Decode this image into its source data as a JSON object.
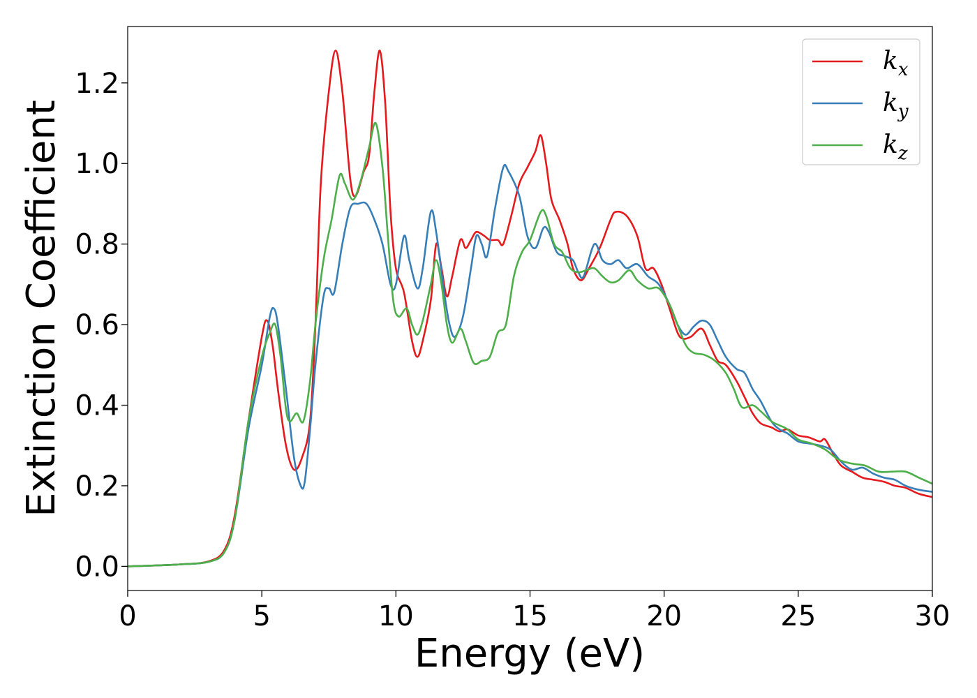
{
  "chart_data": {
    "type": "line",
    "title": "",
    "xlabel": "Energy (eV)",
    "ylabel": "Extinction Coefficient",
    "xlim": [
      0,
      30
    ],
    "ylim": [
      -0.06,
      1.34
    ],
    "xticks": [
      0,
      5,
      10,
      15,
      20,
      25,
      30
    ],
    "yticks": [
      0.0,
      0.2,
      0.4,
      0.6,
      0.8,
      1.0,
      1.2
    ],
    "grid": false,
    "legend_position": "top-right",
    "series": [
      {
        "name": "k",
        "subscript": "x",
        "color": "#e41a1c",
        "points": [
          [
            0,
            0.0
          ],
          [
            1,
            0.002
          ],
          [
            2,
            0.005
          ],
          [
            3,
            0.012
          ],
          [
            3.6,
            0.04
          ],
          [
            4.0,
            0.13
          ],
          [
            4.5,
            0.36
          ],
          [
            5.0,
            0.57
          ],
          [
            5.2,
            0.61
          ],
          [
            5.4,
            0.55
          ],
          [
            5.6,
            0.44
          ],
          [
            5.9,
            0.3
          ],
          [
            6.2,
            0.24
          ],
          [
            6.5,
            0.27
          ],
          [
            6.8,
            0.36
          ],
          [
            7.0,
            0.6
          ],
          [
            7.2,
            0.95
          ],
          [
            7.5,
            1.18
          ],
          [
            7.75,
            1.28
          ],
          [
            8.0,
            1.18
          ],
          [
            8.3,
            0.96
          ],
          [
            8.5,
            0.92
          ],
          [
            8.8,
            0.98
          ],
          [
            9.0,
            1.02
          ],
          [
            9.2,
            1.18
          ],
          [
            9.4,
            1.28
          ],
          [
            9.6,
            1.15
          ],
          [
            9.8,
            0.88
          ],
          [
            10.0,
            0.74
          ],
          [
            10.3,
            0.68
          ],
          [
            10.6,
            0.56
          ],
          [
            10.8,
            0.52
          ],
          [
            11.0,
            0.56
          ],
          [
            11.3,
            0.66
          ],
          [
            11.5,
            0.8
          ],
          [
            11.7,
            0.74
          ],
          [
            11.9,
            0.67
          ],
          [
            12.1,
            0.72
          ],
          [
            12.4,
            0.81
          ],
          [
            12.6,
            0.79
          ],
          [
            12.8,
            0.81
          ],
          [
            13.0,
            0.83
          ],
          [
            13.3,
            0.82
          ],
          [
            13.5,
            0.81
          ],
          [
            13.8,
            0.81
          ],
          [
            14.0,
            0.8
          ],
          [
            14.3,
            0.87
          ],
          [
            14.6,
            0.95
          ],
          [
            14.9,
            0.99
          ],
          [
            15.2,
            1.03
          ],
          [
            15.4,
            1.07
          ],
          [
            15.6,
            1.0
          ],
          [
            15.8,
            0.91
          ],
          [
            16.1,
            0.86
          ],
          [
            16.4,
            0.8
          ],
          [
            16.6,
            0.74
          ],
          [
            16.9,
            0.71
          ],
          [
            17.2,
            0.74
          ],
          [
            17.6,
            0.79
          ],
          [
            18.0,
            0.86
          ],
          [
            18.2,
            0.88
          ],
          [
            18.6,
            0.87
          ],
          [
            19.0,
            0.82
          ],
          [
            19.3,
            0.74
          ],
          [
            19.6,
            0.74
          ],
          [
            19.9,
            0.7
          ],
          [
            20.2,
            0.64
          ],
          [
            20.5,
            0.58
          ],
          [
            20.7,
            0.565
          ],
          [
            21.0,
            0.57
          ],
          [
            21.4,
            0.59
          ],
          [
            21.7,
            0.55
          ],
          [
            22.0,
            0.51
          ],
          [
            22.3,
            0.5
          ],
          [
            22.7,
            0.46
          ],
          [
            23.0,
            0.42
          ],
          [
            23.3,
            0.38
          ],
          [
            23.6,
            0.355
          ],
          [
            24.0,
            0.345
          ],
          [
            24.3,
            0.335
          ],
          [
            24.6,
            0.34
          ],
          [
            25.0,
            0.325
          ],
          [
            25.4,
            0.32
          ],
          [
            25.8,
            0.31
          ],
          [
            26.0,
            0.315
          ],
          [
            26.3,
            0.28
          ],
          [
            26.6,
            0.25
          ],
          [
            27.0,
            0.235
          ],
          [
            27.4,
            0.22
          ],
          [
            27.8,
            0.215
          ],
          [
            28.2,
            0.21
          ],
          [
            28.6,
            0.2
          ],
          [
            29.0,
            0.195
          ],
          [
            29.5,
            0.18
          ],
          [
            30.0,
            0.172
          ]
        ]
      },
      {
        "name": "k",
        "subscript": "y",
        "color": "#377eb8",
        "points": [
          [
            0,
            0.0
          ],
          [
            1,
            0.002
          ],
          [
            2,
            0.005
          ],
          [
            3,
            0.011
          ],
          [
            3.6,
            0.035
          ],
          [
            4.0,
            0.12
          ],
          [
            4.5,
            0.34
          ],
          [
            5.0,
            0.5
          ],
          [
            5.3,
            0.62
          ],
          [
            5.45,
            0.64
          ],
          [
            5.6,
            0.6
          ],
          [
            5.9,
            0.44
          ],
          [
            6.2,
            0.27
          ],
          [
            6.45,
            0.2
          ],
          [
            6.6,
            0.21
          ],
          [
            6.8,
            0.34
          ],
          [
            7.0,
            0.5
          ],
          [
            7.3,
            0.67
          ],
          [
            7.5,
            0.69
          ],
          [
            7.7,
            0.68
          ],
          [
            8.0,
            0.8
          ],
          [
            8.3,
            0.89
          ],
          [
            8.6,
            0.9
          ],
          [
            8.9,
            0.9
          ],
          [
            9.2,
            0.86
          ],
          [
            9.5,
            0.8
          ],
          [
            9.8,
            0.7
          ],
          [
            10.0,
            0.7
          ],
          [
            10.3,
            0.82
          ],
          [
            10.5,
            0.76
          ],
          [
            10.8,
            0.69
          ],
          [
            11.0,
            0.74
          ],
          [
            11.3,
            0.88
          ],
          [
            11.5,
            0.83
          ],
          [
            11.8,
            0.68
          ],
          [
            12.0,
            0.6
          ],
          [
            12.2,
            0.57
          ],
          [
            12.5,
            0.62
          ],
          [
            12.8,
            0.74
          ],
          [
            13.0,
            0.82
          ],
          [
            13.2,
            0.8
          ],
          [
            13.4,
            0.77
          ],
          [
            13.7,
            0.89
          ],
          [
            14.0,
            0.99
          ],
          [
            14.2,
            0.98
          ],
          [
            14.6,
            0.92
          ],
          [
            14.9,
            0.82
          ],
          [
            15.2,
            0.79
          ],
          [
            15.5,
            0.84
          ],
          [
            15.7,
            0.83
          ],
          [
            16.0,
            0.78
          ],
          [
            16.3,
            0.77
          ],
          [
            16.6,
            0.76
          ],
          [
            16.8,
            0.73
          ],
          [
            17.0,
            0.72
          ],
          [
            17.4,
            0.8
          ],
          [
            17.7,
            0.76
          ],
          [
            18.0,
            0.75
          ],
          [
            18.3,
            0.76
          ],
          [
            18.6,
            0.74
          ],
          [
            19.0,
            0.75
          ],
          [
            19.4,
            0.72
          ],
          [
            19.8,
            0.7
          ],
          [
            20.2,
            0.65
          ],
          [
            20.5,
            0.6
          ],
          [
            20.8,
            0.575
          ],
          [
            21.1,
            0.595
          ],
          [
            21.4,
            0.61
          ],
          [
            21.7,
            0.6
          ],
          [
            22.0,
            0.56
          ],
          [
            22.3,
            0.52
          ],
          [
            22.7,
            0.49
          ],
          [
            23.0,
            0.48
          ],
          [
            23.3,
            0.44
          ],
          [
            23.6,
            0.41
          ],
          [
            24.0,
            0.36
          ],
          [
            24.3,
            0.34
          ],
          [
            24.6,
            0.33
          ],
          [
            25.0,
            0.31
          ],
          [
            25.4,
            0.305
          ],
          [
            25.8,
            0.3
          ],
          [
            26.2,
            0.29
          ],
          [
            26.6,
            0.26
          ],
          [
            27.0,
            0.24
          ],
          [
            27.4,
            0.245
          ],
          [
            27.8,
            0.23
          ],
          [
            28.2,
            0.22
          ],
          [
            28.6,
            0.215
          ],
          [
            29.0,
            0.2
          ],
          [
            29.5,
            0.19
          ],
          [
            30.0,
            0.185
          ]
        ]
      },
      {
        "name": "k",
        "subscript": "z",
        "color": "#4daf4a",
        "points": [
          [
            0,
            0.0
          ],
          [
            1,
            0.002
          ],
          [
            2,
            0.005
          ],
          [
            3,
            0.011
          ],
          [
            3.6,
            0.035
          ],
          [
            4.0,
            0.12
          ],
          [
            4.5,
            0.36
          ],
          [
            5.0,
            0.52
          ],
          [
            5.3,
            0.58
          ],
          [
            5.5,
            0.6
          ],
          [
            5.7,
            0.52
          ],
          [
            5.9,
            0.39
          ],
          [
            6.05,
            0.36
          ],
          [
            6.3,
            0.38
          ],
          [
            6.55,
            0.36
          ],
          [
            6.8,
            0.46
          ],
          [
            7.0,
            0.6
          ],
          [
            7.3,
            0.76
          ],
          [
            7.6,
            0.86
          ],
          [
            7.9,
            0.97
          ],
          [
            8.1,
            0.95
          ],
          [
            8.4,
            0.91
          ],
          [
            8.7,
            0.96
          ],
          [
            9.0,
            1.04
          ],
          [
            9.25,
            1.1
          ],
          [
            9.5,
            0.99
          ],
          [
            9.7,
            0.82
          ],
          [
            9.9,
            0.66
          ],
          [
            10.1,
            0.62
          ],
          [
            10.4,
            0.64
          ],
          [
            10.6,
            0.6
          ],
          [
            10.8,
            0.575
          ],
          [
            11.0,
            0.61
          ],
          [
            11.3,
            0.7
          ],
          [
            11.5,
            0.76
          ],
          [
            11.7,
            0.7
          ],
          [
            11.9,
            0.6
          ],
          [
            12.1,
            0.555
          ],
          [
            12.4,
            0.59
          ],
          [
            12.6,
            0.56
          ],
          [
            12.9,
            0.505
          ],
          [
            13.2,
            0.51
          ],
          [
            13.5,
            0.52
          ],
          [
            13.8,
            0.58
          ],
          [
            14.1,
            0.6
          ],
          [
            14.4,
            0.72
          ],
          [
            14.7,
            0.78
          ],
          [
            15.0,
            0.81
          ],
          [
            15.4,
            0.88
          ],
          [
            15.6,
            0.87
          ],
          [
            15.9,
            0.8
          ],
          [
            16.2,
            0.78
          ],
          [
            16.5,
            0.74
          ],
          [
            16.8,
            0.73
          ],
          [
            17.1,
            0.735
          ],
          [
            17.4,
            0.74
          ],
          [
            17.7,
            0.72
          ],
          [
            18.0,
            0.705
          ],
          [
            18.3,
            0.71
          ],
          [
            18.7,
            0.735
          ],
          [
            19.0,
            0.71
          ],
          [
            19.4,
            0.69
          ],
          [
            19.8,
            0.69
          ],
          [
            20.2,
            0.65
          ],
          [
            20.5,
            0.6
          ],
          [
            20.8,
            0.55
          ],
          [
            21.1,
            0.53
          ],
          [
            21.5,
            0.525
          ],
          [
            21.9,
            0.51
          ],
          [
            22.3,
            0.48
          ],
          [
            22.6,
            0.44
          ],
          [
            22.9,
            0.395
          ],
          [
            23.3,
            0.4
          ],
          [
            23.6,
            0.385
          ],
          [
            24.0,
            0.36
          ],
          [
            24.3,
            0.35
          ],
          [
            24.6,
            0.34
          ],
          [
            25.0,
            0.315
          ],
          [
            25.5,
            0.305
          ],
          [
            26.0,
            0.29
          ],
          [
            26.5,
            0.265
          ],
          [
            27.0,
            0.255
          ],
          [
            27.5,
            0.25
          ],
          [
            28.0,
            0.235
          ],
          [
            28.5,
            0.235
          ],
          [
            29.0,
            0.235
          ],
          [
            29.5,
            0.22
          ],
          [
            30.0,
            0.205
          ]
        ]
      }
    ]
  }
}
